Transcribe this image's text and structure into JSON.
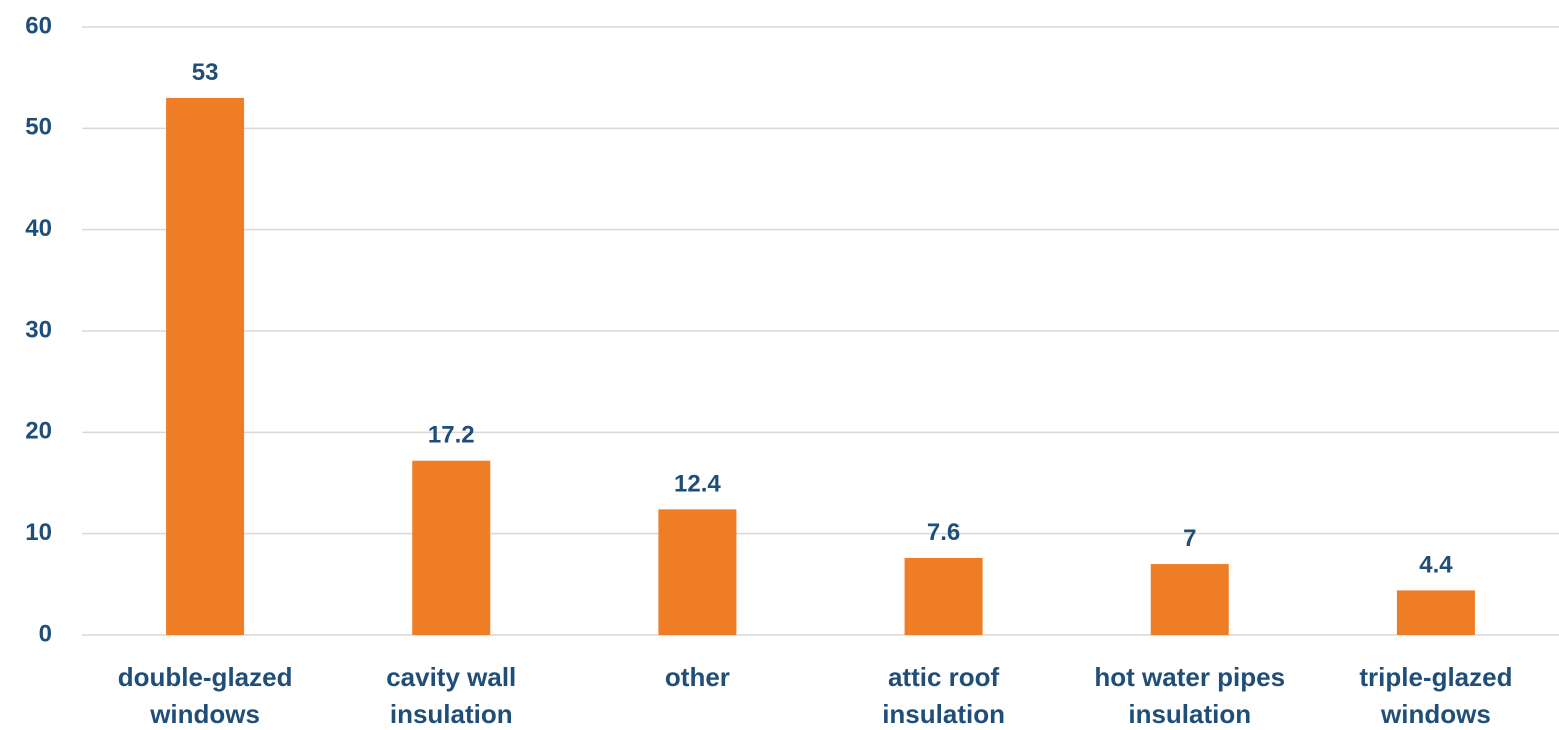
{
  "chart_data": {
    "type": "bar",
    "categories": [
      "double-glazed windows",
      "cavity wall insulation",
      "other",
      "attic roof insulation",
      "hot water pipes insulation",
      "triple-glazed windows"
    ],
    "values": [
      53,
      17.2,
      12.4,
      7.6,
      7,
      4.4
    ],
    "color": "#ee7d26",
    "ylim": [
      0,
      60
    ],
    "yticks": [
      0,
      10,
      20,
      30,
      40,
      50,
      60
    ],
    "grid": true
  }
}
